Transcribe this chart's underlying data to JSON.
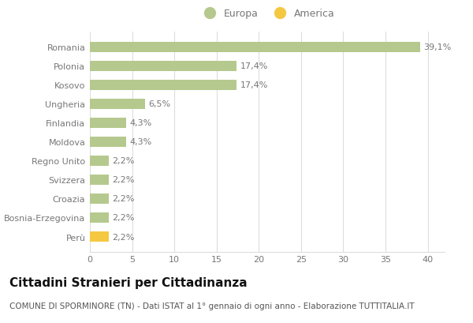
{
  "categories": [
    "Romania",
    "Polonia",
    "Kosovo",
    "Ungheria",
    "Finlandia",
    "Moldova",
    "Regno Unito",
    "Svizzera",
    "Croazia",
    "Bosnia-Erzegovina",
    "Perù"
  ],
  "values": [
    39.1,
    17.4,
    17.4,
    6.5,
    4.3,
    4.3,
    2.2,
    2.2,
    2.2,
    2.2,
    2.2
  ],
  "labels": [
    "39,1%",
    "17,4%",
    "17,4%",
    "6,5%",
    "4,3%",
    "4,3%",
    "2,2%",
    "2,2%",
    "2,2%",
    "2,2%",
    "2,2%"
  ],
  "colors": [
    "#b5c98e",
    "#b5c98e",
    "#b5c98e",
    "#b5c98e",
    "#b5c98e",
    "#b5c98e",
    "#b5c98e",
    "#b5c98e",
    "#b5c98e",
    "#b5c98e",
    "#f5c842"
  ],
  "legend_europa_color": "#b5c98e",
  "legend_america_color": "#f5c842",
  "xlim": [
    0,
    42
  ],
  "xticks": [
    0,
    5,
    10,
    15,
    20,
    25,
    30,
    35,
    40
  ],
  "title": "Cittadini Stranieri per Cittadinanza",
  "subtitle": "COMUNE DI SPORMINORE (TN) - Dati ISTAT al 1° gennaio di ogni anno - Elaborazione TUTTITALIA.IT",
  "background_color": "#ffffff",
  "grid_color": "#dddddd",
  "bar_height": 0.55,
  "title_fontsize": 11,
  "subtitle_fontsize": 7.5,
  "label_fontsize": 8,
  "tick_fontsize": 8,
  "legend_fontsize": 9,
  "axis_label_color": "#777777",
  "title_color": "#111111",
  "subtitle_color": "#555555"
}
